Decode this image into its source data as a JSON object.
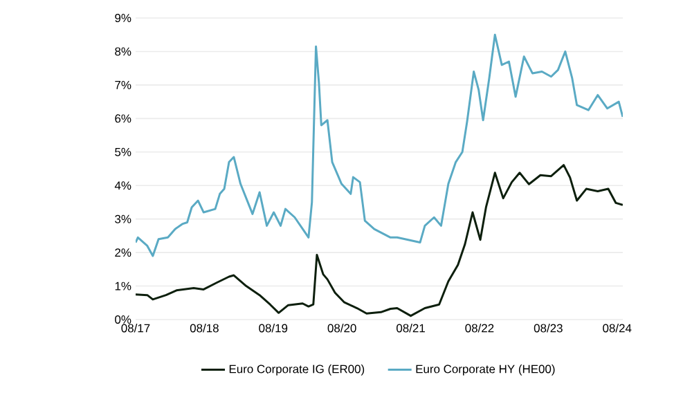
{
  "chart_data": {
    "type": "line",
    "xlim": [
      "2017-08-01",
      "2024-09-01"
    ],
    "xticks": [
      {
        "value": "2017-08",
        "label": "08/17"
      },
      {
        "value": "2018-08",
        "label": "08/18"
      },
      {
        "value": "2019-08",
        "label": "08/19"
      },
      {
        "value": "2020-08",
        "label": "08/20"
      },
      {
        "value": "2021-08",
        "label": "08/21"
      },
      {
        "value": "2022-08",
        "label": "08/22"
      },
      {
        "value": "2023-08",
        "label": "08/23"
      },
      {
        "value": "2024-08",
        "label": "08/24"
      }
    ],
    "ylim": [
      0,
      9
    ],
    "yticks": [
      {
        "value": 0,
        "label": "0%"
      },
      {
        "value": 1,
        "label": "1%"
      },
      {
        "value": 2,
        "label": "2%"
      },
      {
        "value": 3,
        "label": "3%"
      },
      {
        "value": 4,
        "label": "4%"
      },
      {
        "value": 5,
        "label": "5%"
      },
      {
        "value": 6,
        "label": "6%"
      },
      {
        "value": 7,
        "label": "7%"
      },
      {
        "value": 8,
        "label": "8%"
      },
      {
        "value": 9,
        "label": "9%"
      }
    ],
    "grid": "y",
    "legend": "bottom",
    "marker": "none",
    "line_style": "solid",
    "series": [
      {
        "name": "Euro Corporate IG (ER00)",
        "color": "#0d1f0d",
        "x": [
          "2017-08-01",
          "2017-10-02",
          "2017-11-01",
          "2018-01-10",
          "2018-03-05",
          "2018-06-05",
          "2018-07-27",
          "2018-10-05",
          "2018-12-10",
          "2019-01-05",
          "2019-03-10",
          "2019-05-20",
          "2019-07-15",
          "2019-08-30",
          "2019-10-20",
          "2020-01-05",
          "2020-02-06",
          "2020-03-01",
          "2020-03-20",
          "2020-04-23",
          "2020-05-15",
          "2020-06-25",
          "2020-08-12",
          "2020-10-20",
          "2020-12-10",
          "2021-02-25",
          "2021-04-15",
          "2021-05-20",
          "2021-08-01",
          "2021-10-15",
          "2021-12-30",
          "2022-02-18",
          "2022-04-08",
          "2022-05-15",
          "2022-06-25",
          "2022-08-05",
          "2022-09-05",
          "2022-10-22",
          "2022-12-05",
          "2023-01-20",
          "2023-03-01",
          "2023-04-20",
          "2023-06-20",
          "2023-08-16",
          "2023-10-22",
          "2023-11-25",
          "2023-12-31",
          "2024-02-20",
          "2024-04-20",
          "2024-06-15",
          "2024-07-25",
          "2024-08-31"
        ],
        "values": [
          0.75,
          0.73,
          0.6,
          0.73,
          0.87,
          0.94,
          0.9,
          1.1,
          1.28,
          1.32,
          1.0,
          0.73,
          0.45,
          0.2,
          0.43,
          0.48,
          0.39,
          0.45,
          1.93,
          1.35,
          1.2,
          0.8,
          0.52,
          0.34,
          0.18,
          0.22,
          0.32,
          0.34,
          0.11,
          0.34,
          0.45,
          1.14,
          1.63,
          2.25,
          3.2,
          2.38,
          3.35,
          4.38,
          3.62,
          4.1,
          4.38,
          4.04,
          4.31,
          4.28,
          4.61,
          4.24,
          3.55,
          3.9,
          3.83,
          3.9,
          3.48,
          3.42
        ]
      },
      {
        "name": "Euro Corporate HY (HE00)",
        "color": "#5aaac4",
        "x": [
          "2017-08-01",
          "2017-08-13",
          "2017-10-02",
          "2017-11-01",
          "2017-12-01",
          "2018-01-20",
          "2018-02-28",
          "2018-04-05",
          "2018-05-01",
          "2018-05-25",
          "2018-06-28",
          "2018-07-27",
          "2018-09-28",
          "2018-10-22",
          "2018-11-15",
          "2018-12-10",
          "2019-01-05",
          "2019-02-10",
          "2019-04-13",
          "2019-05-20",
          "2019-06-28",
          "2019-08-04",
          "2019-09-10",
          "2019-10-05",
          "2019-11-24",
          "2020-01-12",
          "2020-02-06",
          "2020-02-24",
          "2020-03-15",
          "2020-03-31",
          "2020-04-13",
          "2020-05-15",
          "2020-06-10",
          "2020-07-29",
          "2020-09-17",
          "2020-09-30",
          "2020-11-05",
          "2020-12-01",
          "2021-01-20",
          "2021-04-15",
          "2021-05-20",
          "2021-09-20",
          "2021-10-15",
          "2021-12-03",
          "2022-01-10",
          "2022-02-18",
          "2022-03-27",
          "2022-05-01",
          "2022-05-26",
          "2022-07-01",
          "2022-07-27",
          "2022-08-20",
          "2022-09-22",
          "2022-10-22",
          "2022-11-28",
          "2023-01-05",
          "2023-02-10",
          "2023-03-24",
          "2023-05-08",
          "2023-06-28",
          "2023-08-16",
          "2023-09-22",
          "2023-10-30",
          "2023-12-06",
          "2023-12-31",
          "2024-03-01",
          "2024-04-20",
          "2024-06-10",
          "2024-08-10",
          "2024-08-31"
        ],
        "values": [
          2.3,
          2.45,
          2.2,
          1.9,
          2.4,
          2.45,
          2.7,
          2.85,
          2.9,
          3.35,
          3.55,
          3.2,
          3.3,
          3.75,
          3.9,
          4.7,
          4.85,
          4.05,
          3.15,
          3.8,
          2.8,
          3.2,
          2.8,
          3.3,
          3.05,
          2.65,
          2.45,
          3.5,
          8.15,
          7.05,
          5.8,
          5.95,
          4.7,
          4.05,
          3.75,
          4.25,
          4.1,
          2.95,
          2.7,
          2.45,
          2.45,
          2.3,
          2.8,
          3.05,
          2.8,
          4.05,
          4.7,
          5.0,
          5.9,
          7.4,
          6.85,
          5.95,
          7.2,
          8.5,
          7.6,
          7.7,
          6.65,
          7.85,
          7.35,
          7.4,
          7.25,
          7.45,
          8.0,
          7.2,
          6.4,
          6.25,
          6.7,
          6.3,
          6.5,
          6.05
        ]
      }
    ]
  }
}
